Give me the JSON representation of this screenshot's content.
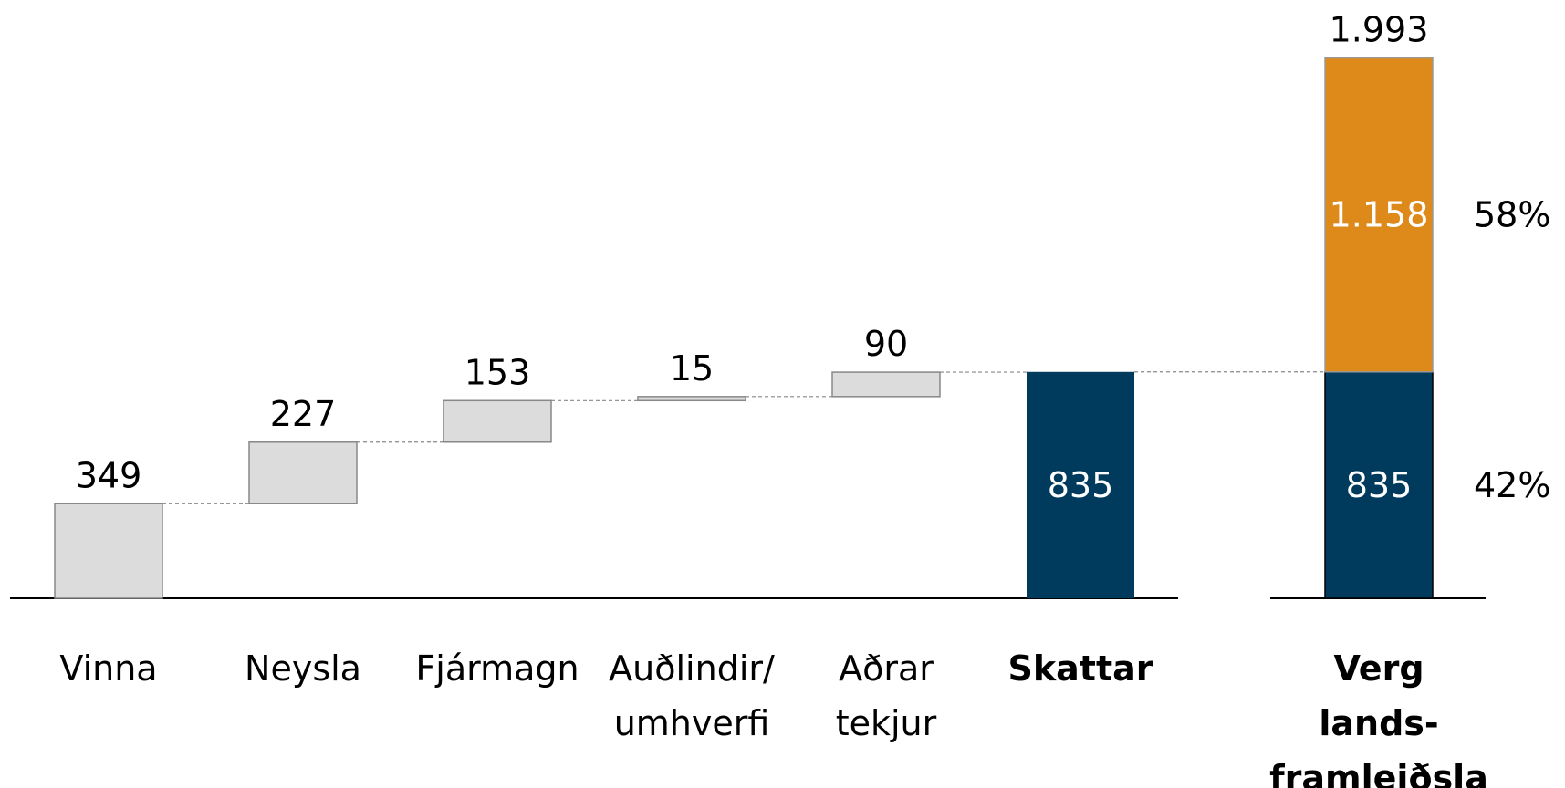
{
  "chart_data": [
    {
      "type": "waterfall",
      "categories": [
        "Vinna",
        "Neysla",
        "Fjármagn",
        "Auðlindir/\numhverfi",
        "Aðrar\ntekjur",
        "Skattar"
      ],
      "values": [
        349,
        227,
        153,
        15,
        90,
        835
      ],
      "kinds": [
        "increase",
        "increase",
        "increase",
        "increase",
        "increase",
        "total"
      ],
      "color": "#dcdcdc",
      "total_color": "#003a5d",
      "ylim": [
        0,
        2200
      ]
    },
    {
      "type": "stacked_bar",
      "categories": [
        "Verg\nlands-\nframleiðsla"
      ],
      "series": [
        {
          "color": "#003a5d",
          "values": [
            835
          ],
          "shares": [
            42
          ],
          "share_labels": [
            "42%"
          ]
        },
        {
          "color": "#dd8a1a",
          "values": [
            1158
          ],
          "value_labels": [
            "1.158"
          ],
          "shares": [
            58
          ],
          "share_labels": [
            "58%"
          ]
        }
      ],
      "total": 1993,
      "total_label": "1.993",
      "ylim": [
        0,
        2200
      ]
    }
  ]
}
